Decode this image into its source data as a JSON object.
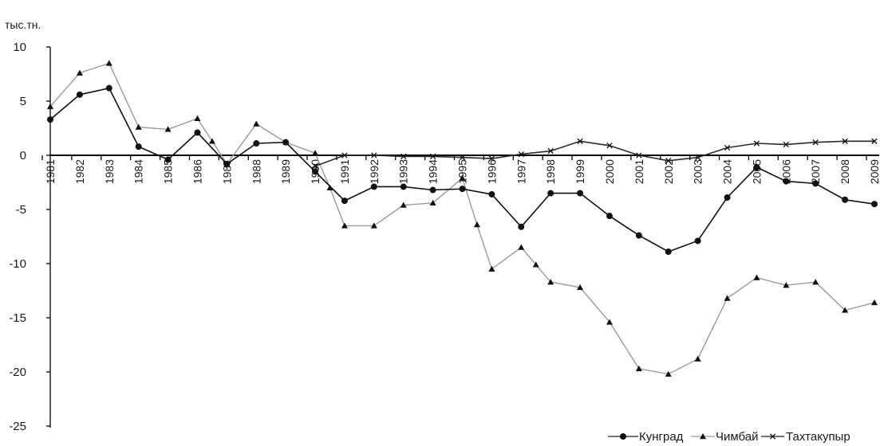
{
  "chart_data": {
    "type": "line",
    "ylabel": "тыс.тн.",
    "ylim": [
      -25,
      10
    ],
    "yticks": [
      10,
      5,
      0,
      -5,
      -10,
      -15,
      -20,
      -25
    ],
    "grid": false,
    "legend_position": "bottom-right",
    "categories": [
      "1981",
      "1982",
      "1983",
      "1984",
      "1985",
      "1986",
      "1987",
      "1988",
      "1989",
      "1990",
      "1991",
      "1992",
      "1993",
      "1994",
      "1995",
      "1996",
      "1997",
      "1998",
      "1999",
      "2000",
      "2001",
      "2002",
      "2003",
      "2004",
      "2005",
      "2006",
      "2007",
      "2008",
      "2009"
    ],
    "series": [
      {
        "name": "Кунград",
        "color": "#111111",
        "marker": "circle",
        "x": [
          1981,
          1982,
          1983,
          1984,
          1985,
          1986,
          1987,
          1988,
          1989,
          1990,
          1991,
          1992,
          1993,
          1994,
          1995,
          1996,
          1997,
          1998,
          1999,
          2000,
          2001,
          2002,
          2003,
          2004,
          2005,
          2006,
          2007,
          2008,
          2009
        ],
        "values": [
          3.3,
          5.6,
          6.2,
          0.8,
          -0.4,
          2.1,
          -0.8,
          1.1,
          1.2,
          -1.5,
          -4.2,
          -2.9,
          -2.9,
          -3.2,
          -3.1,
          -3.6,
          -6.6,
          -3.5,
          -3.5,
          -5.6,
          -7.4,
          -8.9,
          -7.9,
          -3.9,
          -1.1,
          -2.4,
          -2.6,
          -4.1,
          -4.5
        ]
      },
      {
        "name": "Чимбай",
        "color": "#9a9a9a",
        "marker": "triangle",
        "x": [
          1981,
          1982,
          1983,
          1984,
          1985,
          1986,
          1986.5,
          1987,
          1988,
          1989,
          1990,
          1990.5,
          1991,
          1992,
          1993,
          1994,
          1995,
          1995.5,
          1996,
          1997,
          1997.5,
          1998,
          1999,
          2000,
          2001,
          2002,
          2003,
          2004,
          2005,
          2006,
          2007,
          2008,
          2009
        ],
        "values": [
          4.5,
          7.6,
          8.5,
          2.6,
          2.4,
          3.4,
          1.3,
          -0.8,
          2.9,
          1.2,
          0.2,
          -3.0,
          -6.5,
          -6.5,
          -4.6,
          -4.4,
          -2.1,
          -6.4,
          -10.5,
          -8.5,
          -10.1,
          -11.7,
          -12.2,
          -15.4,
          -19.7,
          -20.2,
          -18.8,
          -13.2,
          -11.3,
          -12.0,
          -11.7,
          -14.3,
          -13.6
        ]
      },
      {
        "name": "Тахтакупыр",
        "color": "#2a2a2a",
        "marker": "x",
        "x": [
          1990,
          1991,
          1992,
          1993,
          1994,
          1995,
          1996,
          1997,
          1998,
          1999,
          2000,
          2001,
          2002,
          2003,
          2004,
          2005,
          2006,
          2007,
          2008,
          2009
        ],
        "values": [
          -1.0,
          0.0,
          0.0,
          -0.1,
          -0.1,
          -0.2,
          -0.3,
          0.1,
          0.4,
          1.3,
          0.9,
          0.0,
          -0.5,
          -0.2,
          0.7,
          1.1,
          1.0,
          1.2,
          1.3,
          1.3
        ]
      }
    ]
  }
}
